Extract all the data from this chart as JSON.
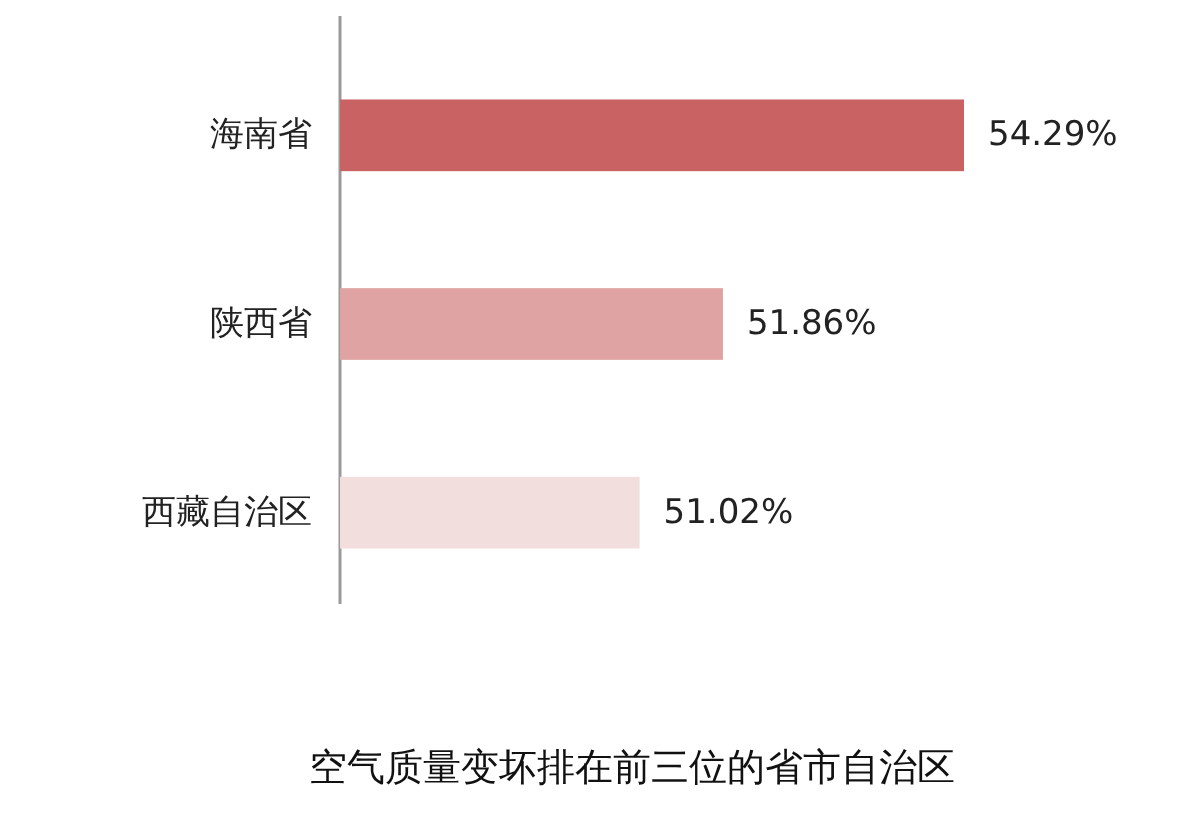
{
  "chart_data": {
    "type": "bar",
    "orientation": "horizontal",
    "title": "空气质量变坏排在前三位的省市自治区",
    "categories": [
      "海南省",
      "陕西省",
      "西藏自治区"
    ],
    "values": [
      54.29,
      51.86,
      51.02
    ],
    "colors": [
      "#c96262",
      "#dfa3a3",
      "#f3dede"
    ],
    "value_labels": [
      "54.29%",
      "51.86%",
      "51.02%"
    ],
    "xlim": [
      48,
      54.29
    ]
  }
}
